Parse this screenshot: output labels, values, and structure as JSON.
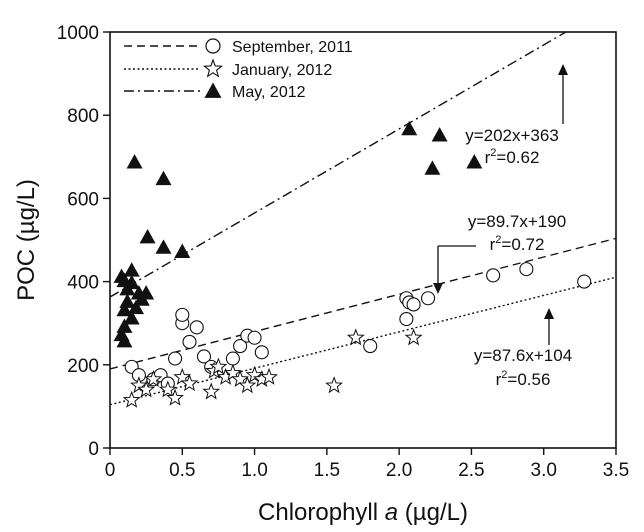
{
  "chart_data": {
    "type": "scatter",
    "xlabel": "Chlorophyll a (µg/L)",
    "xlabel_parts": {
      "pre": "Chlorophyll ",
      "italic": "a",
      "post": " (µg/L)"
    },
    "ylabel": "POC (µg/L)",
    "xlim": [
      0,
      3.5
    ],
    "ylim": [
      0,
      1000
    ],
    "x_ticks": [
      0,
      0.5,
      1.0,
      1.5,
      2.0,
      2.5,
      3.0,
      3.5
    ],
    "x_tick_labels": [
      "0",
      "0.5",
      "1.0",
      "1.5",
      "2.0",
      "2.5",
      "3.0",
      "3.5"
    ],
    "y_ticks": [
      0,
      200,
      400,
      600,
      800,
      1000
    ],
    "y_tick_labels": [
      "0",
      "200",
      "400",
      "600",
      "800",
      "1000"
    ],
    "grid": false,
    "legend_position": "top-left",
    "series": [
      {
        "name": "September, 2011",
        "marker": "circle-open",
        "line_style": "dashed",
        "fit": {
          "slope": 89.7,
          "intercept": 190
        },
        "points": [
          [
            0.15,
            195
          ],
          [
            0.2,
            175
          ],
          [
            0.3,
            165
          ],
          [
            0.35,
            175
          ],
          [
            0.4,
            155
          ],
          [
            0.45,
            215
          ],
          [
            0.5,
            300
          ],
          [
            0.5,
            320
          ],
          [
            0.55,
            255
          ],
          [
            0.6,
            290
          ],
          [
            0.65,
            220
          ],
          [
            0.7,
            195
          ],
          [
            0.85,
            215
          ],
          [
            0.9,
            245
          ],
          [
            0.95,
            270
          ],
          [
            1.0,
            265
          ],
          [
            1.05,
            230
          ],
          [
            1.8,
            245
          ],
          [
            2.05,
            360
          ],
          [
            2.07,
            350
          ],
          [
            2.1,
            345
          ],
          [
            2.2,
            360
          ],
          [
            2.05,
            310
          ],
          [
            2.65,
            415
          ],
          [
            2.88,
            430
          ],
          [
            3.28,
            400
          ]
        ]
      },
      {
        "name": "January, 2012",
        "marker": "star-open",
        "line_style": "dotted",
        "fit": {
          "slope": 87.6,
          "intercept": 104
        },
        "points": [
          [
            0.15,
            115
          ],
          [
            0.2,
            150
          ],
          [
            0.25,
            140
          ],
          [
            0.3,
            165
          ],
          [
            0.4,
            140
          ],
          [
            0.45,
            120
          ],
          [
            0.5,
            170
          ],
          [
            0.55,
            155
          ],
          [
            0.7,
            135
          ],
          [
            0.72,
            185
          ],
          [
            0.75,
            195
          ],
          [
            0.8,
            170
          ],
          [
            0.85,
            180
          ],
          [
            0.9,
            165
          ],
          [
            0.95,
            150
          ],
          [
            1.0,
            175
          ],
          [
            1.05,
            165
          ],
          [
            1.1,
            170
          ],
          [
            1.55,
            150
          ],
          [
            1.7,
            265
          ],
          [
            2.1,
            265
          ]
        ]
      },
      {
        "name": "May, 2012",
        "marker": "triangle-filled",
        "line_style": "dash-dot",
        "fit": {
          "slope": 202,
          "intercept": 363
        },
        "points": [
          [
            0.08,
            410
          ],
          [
            0.1,
            400
          ],
          [
            0.12,
            380
          ],
          [
            0.1,
            330
          ],
          [
            0.12,
            350
          ],
          [
            0.1,
            290
          ],
          [
            0.08,
            270
          ],
          [
            0.1,
            255
          ],
          [
            0.15,
            310
          ],
          [
            0.15,
            395
          ],
          [
            0.15,
            425
          ],
          [
            0.2,
            370
          ],
          [
            0.22,
            355
          ],
          [
            0.18,
            335
          ],
          [
            0.25,
            370
          ],
          [
            0.26,
            505
          ],
          [
            0.37,
            480
          ],
          [
            0.5,
            470
          ],
          [
            0.17,
            685
          ],
          [
            0.37,
            645
          ],
          [
            2.07,
            765
          ],
          [
            2.28,
            750
          ],
          [
            2.23,
            670
          ],
          [
            2.52,
            685
          ]
        ]
      }
    ],
    "annotations": [
      {
        "equation": "y=202x+363",
        "r2_label": "r",
        "r2_sup": "2",
        "r2_value": "=0.62"
      },
      {
        "equation": "y=89.7x+190",
        "r2_label": "r",
        "r2_sup": "2",
        "r2_value": "=0.72"
      },
      {
        "equation": "y=87.6x+104",
        "r2_label": "r",
        "r2_sup": "2",
        "r2_value": "=0.56"
      }
    ]
  }
}
